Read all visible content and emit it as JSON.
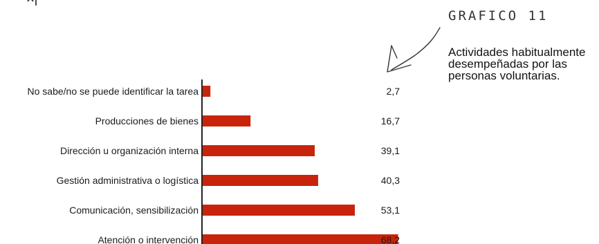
{
  "figure": {
    "label": "GRAFICO 11",
    "caption": "Actividades habitualmente desempeñadas por las personas voluntarias."
  },
  "colors": {
    "bar": "#c8240c",
    "axis": "#222222",
    "text": "#1a1a1a"
  },
  "chart_data": {
    "type": "bar",
    "orientation": "horizontal",
    "categories": [
      "No sabe/no se puede identificar la tarea",
      "Producciones de bienes",
      "Dirección u organización interna",
      "Gestión administrativa o logística",
      "Comunicación, sensibilización",
      "Atención o intervención"
    ],
    "values": [
      2.7,
      16.7,
      39.1,
      40.3,
      53.1,
      68.2
    ],
    "value_labels": [
      "2,7",
      "16,7",
      "39,1",
      "40,3",
      "53,1",
      "68,2"
    ],
    "title": "",
    "xlabel": "",
    "ylabel": "",
    "xlim": [
      0,
      70
    ],
    "grid": false,
    "legend": "none"
  }
}
